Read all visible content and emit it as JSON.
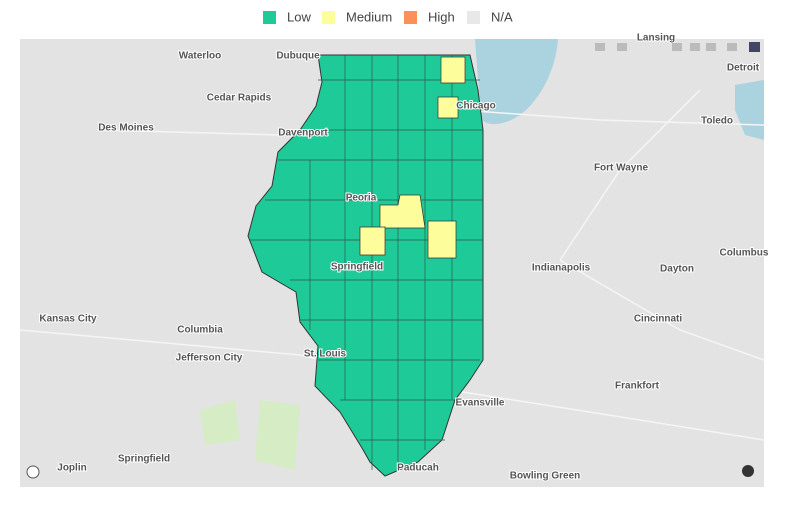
{
  "legend": [
    {
      "label": "Low",
      "color": "#1ecb98"
    },
    {
      "label": "Medium",
      "color": "#fdfd9b"
    },
    {
      "label": "High",
      "color": "#fd8f5b"
    },
    {
      "label": "N/A",
      "color": "#e8e8e8"
    }
  ],
  "places": [
    "Waterloo",
    "Dubuque",
    "Cedar Rapids",
    "Des Moines",
    "Davenport",
    "Chicago",
    "Detroit",
    "Toledo",
    "Fort Wayne",
    "Peoria",
    "Springfield",
    "Indianapolis",
    "Dayton",
    "Columbus",
    "Kansas City",
    "Columbia",
    "Jefferson City",
    "St. Louis",
    "Cincinnati",
    "Frankfort",
    "Evansville",
    "Springfield",
    "Joplin",
    "Paducah",
    "Bowling Green",
    "Lansing"
  ]
}
